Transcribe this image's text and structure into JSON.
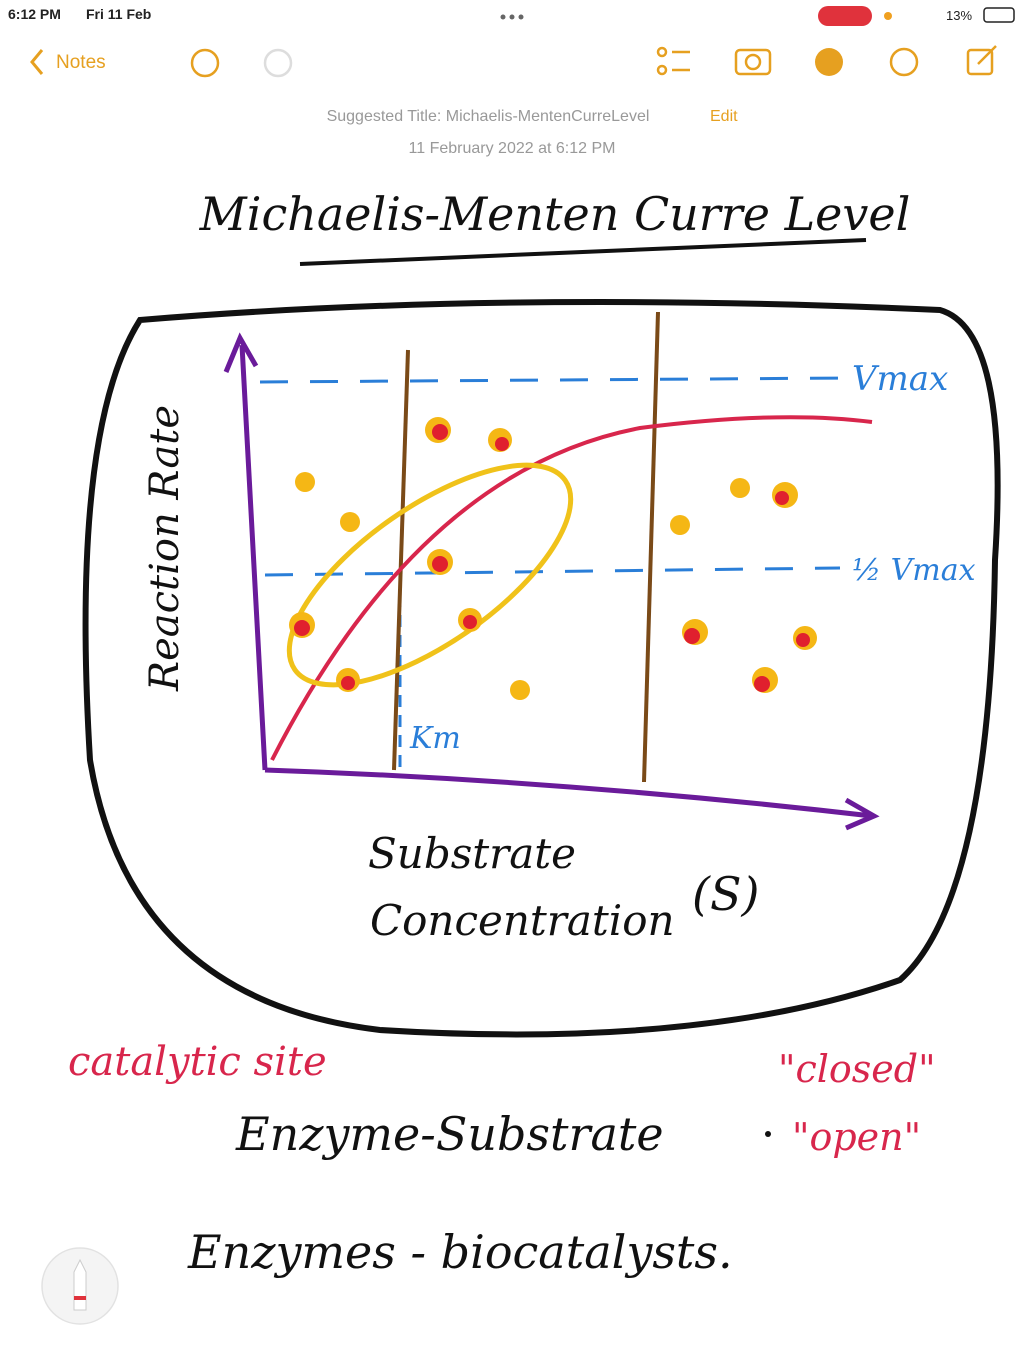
{
  "status_bar": {
    "time": "6:12 PM",
    "date": "Fri 11 Feb",
    "battery": "13%"
  },
  "toolbar": {
    "back": "Notes"
  },
  "note_header": {
    "suggested_title": "Suggested Title: Michaelis-MentenCurreLevel",
    "edit": "Edit",
    "date": "11 February 2022 at 6:12 PM"
  },
  "sketch": {
    "title": "Michaelis-Menten Curre Level",
    "y_axis": "Reaction Rate",
    "x_axis_line1": "Substrate",
    "x_axis_line2": "Concentration",
    "x_axis_symbol": "(S)",
    "vmax": "Vmax",
    "half_vmax": "½ Vmax",
    "km": "Km"
  },
  "notes": {
    "catalytic": "catalytic site",
    "closed": "\"closed\"",
    "open": "\"open\"",
    "enzyme_substrate": "Enzyme-Substrate",
    "enzymes": "Enzymes - biocatalysts."
  }
}
